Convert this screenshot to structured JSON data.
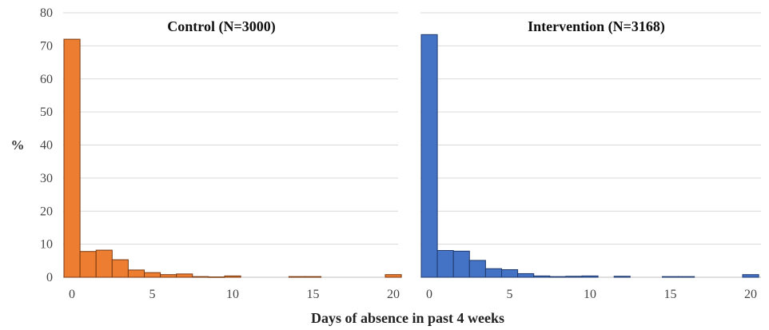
{
  "chart_data": {
    "type": "bar",
    "ylabel": "%",
    "xlabel": "Days of absence in past 4 weeks",
    "ylim": [
      0,
      80
    ],
    "yticks": [
      0,
      10,
      20,
      30,
      40,
      50,
      60,
      70,
      80
    ],
    "xlim": [
      0,
      20
    ],
    "xticks": [
      0,
      5,
      10,
      15,
      20
    ],
    "grid": true,
    "panels": [
      {
        "title": "Control (N=3000)",
        "color": "#ED7D31",
        "edge": "#7A3A10",
        "x": [
          0,
          1,
          2,
          3,
          4,
          5,
          6,
          7,
          8,
          9,
          10,
          11,
          12,
          13,
          14,
          15,
          16,
          17,
          18,
          19,
          20
        ],
        "values": [
          72.0,
          7.8,
          8.2,
          5.3,
          2.2,
          1.4,
          0.8,
          1.0,
          0.2,
          0.1,
          0.4,
          0,
          0,
          0,
          0.2,
          0.2,
          0,
          0,
          0,
          0,
          0.8
        ]
      },
      {
        "title": "Intervention (N=3168)",
        "color": "#4472C4",
        "edge": "#1F3A6E",
        "x": [
          0,
          1,
          2,
          3,
          4,
          5,
          6,
          7,
          8,
          9,
          10,
          11,
          12,
          13,
          14,
          15,
          16,
          17,
          18,
          19,
          20
        ],
        "values": [
          73.4,
          8.1,
          7.9,
          5.1,
          2.6,
          2.3,
          1.1,
          0.4,
          0.2,
          0.3,
          0.4,
          0,
          0.3,
          0,
          0,
          0.2,
          0.2,
          0,
          0,
          0,
          0.8
        ]
      }
    ]
  }
}
